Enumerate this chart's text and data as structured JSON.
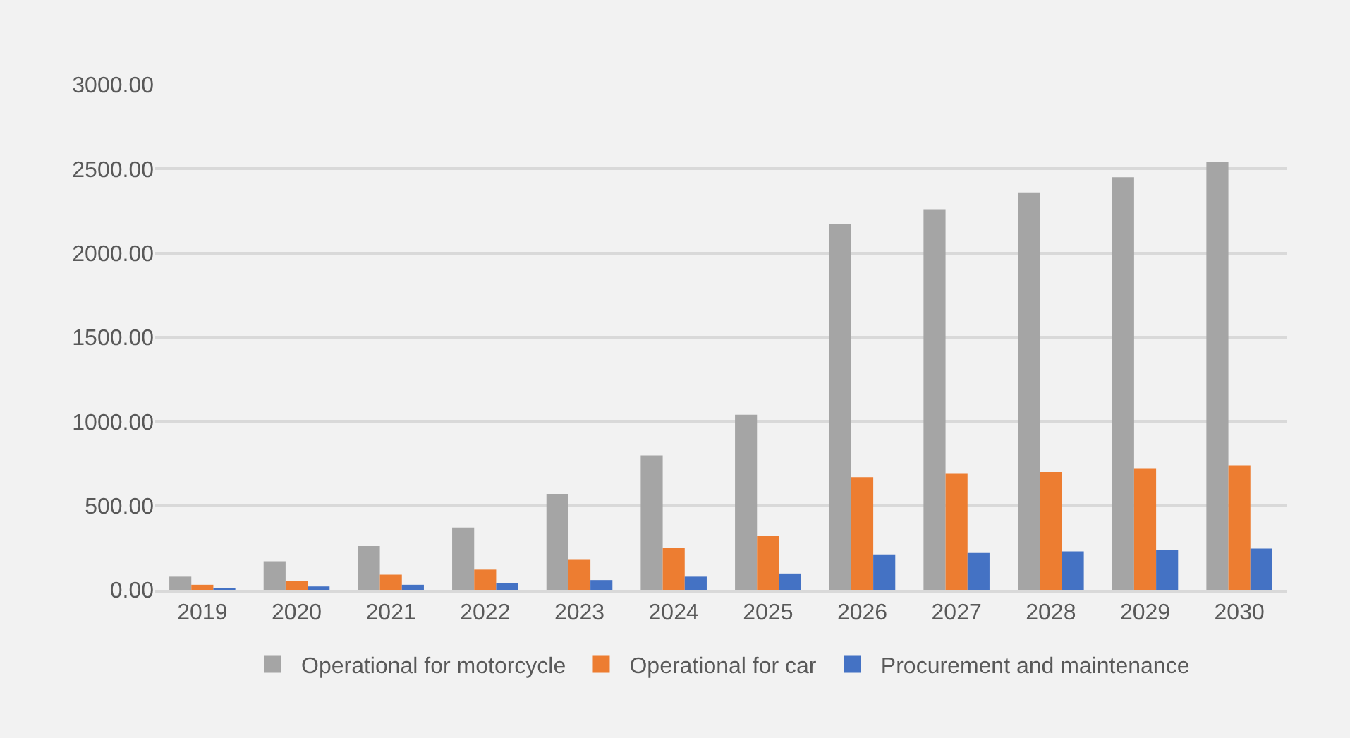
{
  "chart_data": {
    "type": "bar",
    "categories": [
      "2019",
      "2020",
      "2021",
      "2022",
      "2023",
      "2024",
      "2025",
      "2026",
      "2027",
      "2028",
      "2029",
      "2030"
    ],
    "series": [
      {
        "name": "Operational for motorcycle",
        "color": "#a5a5a5",
        "values": [
          78,
          170,
          260,
          370,
          570,
          798,
          1040,
          2175,
          2260,
          2360,
          2450,
          2540
        ]
      },
      {
        "name": "Operational for car",
        "color": "#ed7d31",
        "values": [
          30,
          55,
          90,
          120,
          178,
          247,
          320,
          669,
          689,
          700,
          719,
          739
        ]
      },
      {
        "name": "Procurement and maintenance",
        "color": "#4472c4",
        "values": [
          2,
          20,
          30,
          40,
          58,
          78,
          97,
          211,
          219,
          228,
          236,
          245
        ]
      }
    ],
    "ylim": [
      0,
      3000
    ],
    "yticks": [
      {
        "value": 0,
        "label": "0.00"
      },
      {
        "value": 500,
        "label": "500.00"
      },
      {
        "value": 1000,
        "label": "1000.00"
      },
      {
        "value": 1500,
        "label": "1500.00"
      },
      {
        "value": 2000,
        "label": "2000.00"
      },
      {
        "value": 2500,
        "label": "2500.00"
      },
      {
        "value": 3000,
        "label": "3000.00"
      }
    ],
    "grid": "y",
    "legend": "bottom"
  }
}
